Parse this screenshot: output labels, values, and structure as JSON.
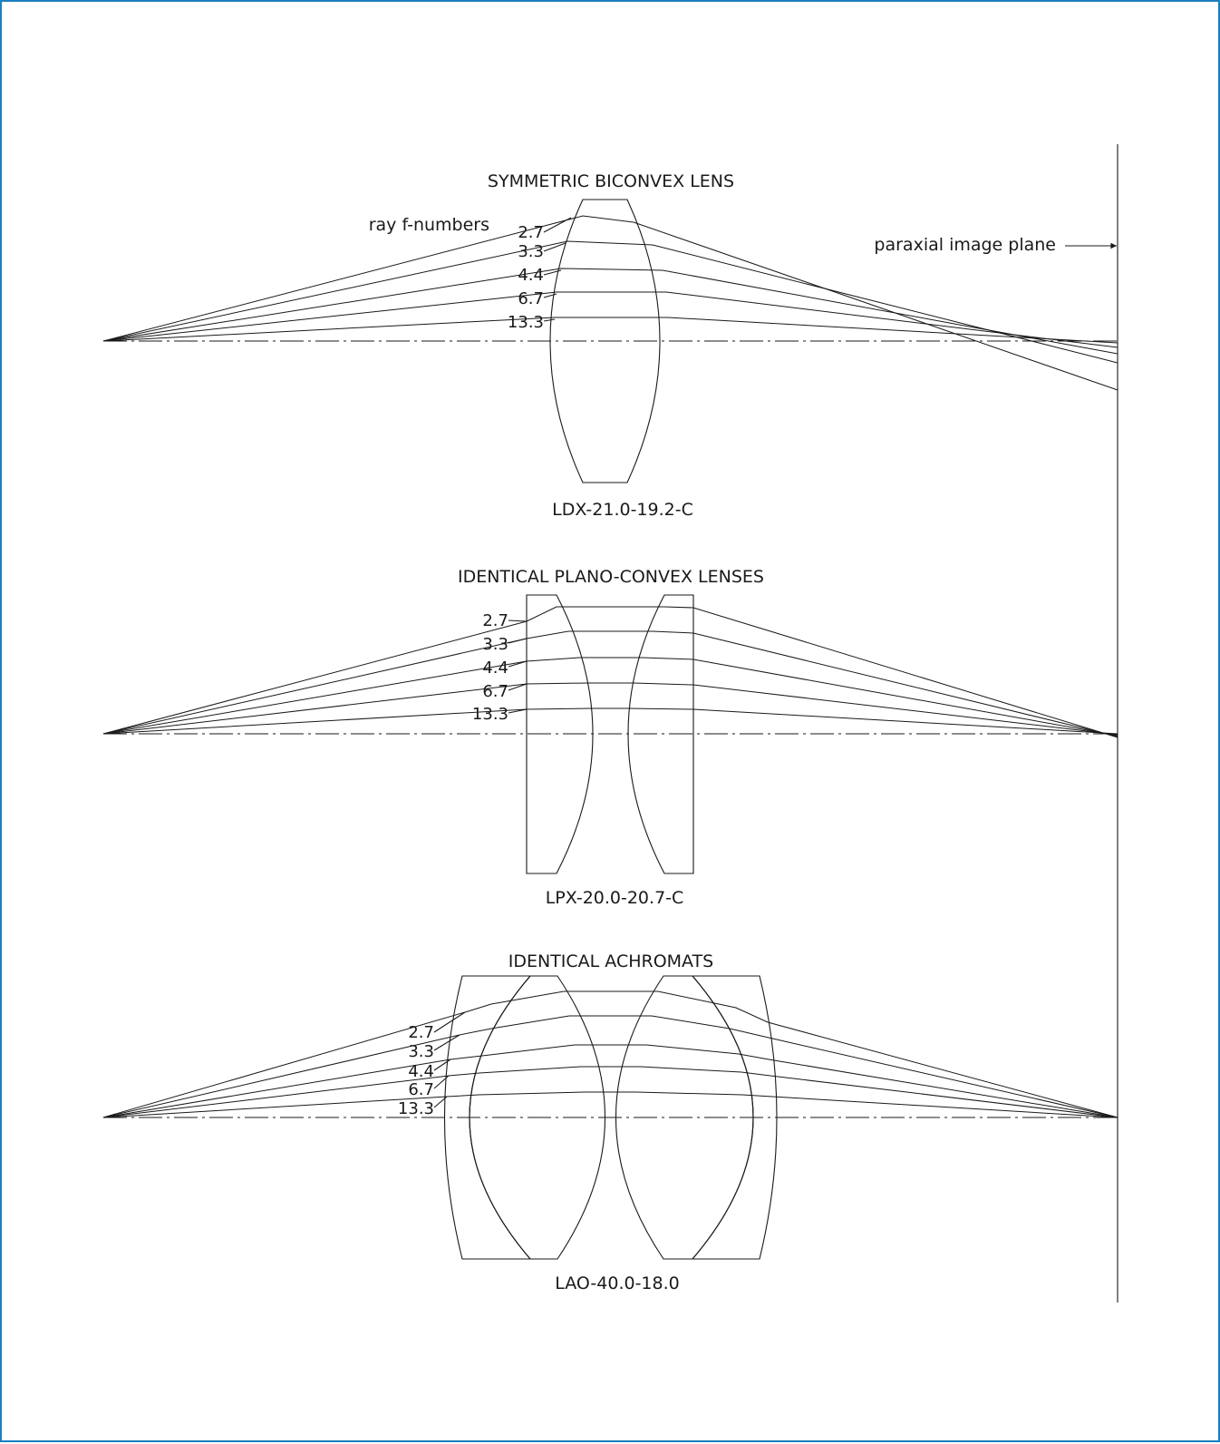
{
  "image_plane": {
    "label": "paraxial image plane"
  },
  "ray_f_numbers_label": "ray f-numbers",
  "f_numbers": [
    "2.7",
    "3.3",
    "4.4",
    "6.7",
    "13.3"
  ],
  "diagrams": [
    {
      "title": "SYMMETRIC BICONVEX LENS",
      "model": "LDX-21.0-19.2-C"
    },
    {
      "title": "IDENTICAL PLANO-CONVEX LENSES",
      "model": "LPX-20.0-20.7-C"
    },
    {
      "title": "IDENTICAL ACHROMATS",
      "model": "LAO-40.0-18.0"
    }
  ]
}
